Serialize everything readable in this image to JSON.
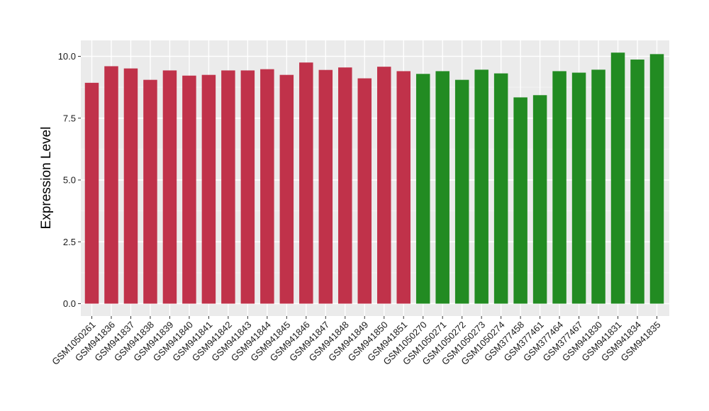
{
  "chart_data": {
    "type": "bar",
    "title": "",
    "xlabel": "",
    "ylabel": "Expression Level",
    "ylim": [
      0,
      10.45
    ],
    "yticks": [
      0.0,
      2.5,
      5.0,
      7.5,
      10.0
    ],
    "ytick_labels": [
      "0.0",
      "2.5",
      "5.0",
      "7.5",
      "10.0"
    ],
    "grid": true,
    "legend": "none",
    "background_color": "#ebebeb",
    "categories": [
      "GSM1050261",
      "GSM941836",
      "GSM941837",
      "GSM941838",
      "GSM941839",
      "GSM941840",
      "GSM941841",
      "GSM941842",
      "GSM941843",
      "GSM941844",
      "GSM941845",
      "GSM941846",
      "GSM941847",
      "GSM941848",
      "GSM941849",
      "GSM941850",
      "GSM941851",
      "GSM1050270",
      "GSM1050271",
      "GSM1050272",
      "GSM1050273",
      "GSM1050274",
      "GSM377458",
      "GSM377461",
      "GSM377464",
      "GSM377467",
      "GSM941830",
      "GSM941831",
      "GSM941834",
      "GSM941835"
    ],
    "values": [
      8.93,
      9.6,
      9.51,
      9.05,
      9.43,
      9.22,
      9.25,
      9.43,
      9.43,
      9.48,
      9.25,
      9.75,
      9.45,
      9.55,
      9.11,
      9.58,
      9.4,
      9.29,
      9.4,
      9.05,
      9.46,
      9.31,
      8.34,
      8.43,
      9.4,
      9.34,
      9.46,
      10.15,
      9.87,
      10.09
    ],
    "bar_colors": [
      "#c0324a",
      "#c0324a",
      "#c0324a",
      "#c0324a",
      "#c0324a",
      "#c0324a",
      "#c0324a",
      "#c0324a",
      "#c0324a",
      "#c0324a",
      "#c0324a",
      "#c0324a",
      "#c0324a",
      "#c0324a",
      "#c0324a",
      "#c0324a",
      "#c0324a",
      "#228b22",
      "#228b22",
      "#228b22",
      "#228b22",
      "#228b22",
      "#228b22",
      "#228b22",
      "#228b22",
      "#228b22",
      "#228b22",
      "#228b22",
      "#228b22",
      "#228b22"
    ]
  }
}
